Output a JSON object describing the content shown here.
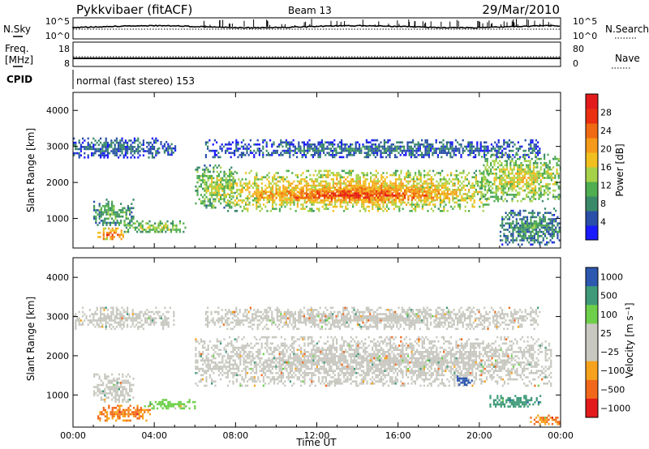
{
  "header": {
    "title": "Pykkvibaer (fitACF)",
    "beam": "Beam 13",
    "date": "29/Mar/2010"
  },
  "noise_panel": {
    "left_label": "N.Sky",
    "right_label": "N.Search",
    "left_ticks": [
      "10^5",
      "10^0"
    ],
    "right_ticks": [
      "10^5",
      "10^0"
    ]
  },
  "freq_panel": {
    "left_label_1": "Freq.",
    "left_label_2": "[MHz]",
    "right_label": "Nave",
    "left_ticks": [
      "18",
      "8"
    ],
    "right_ticks": [
      "80",
      "0"
    ]
  },
  "cpid_panel": {
    "label": "CPID",
    "text": "normal (fast stereo) 153"
  },
  "colors": {
    "power_scale": [
      "#1a1aff",
      "#2a4fa8",
      "#3a8a6a",
      "#4fae4f",
      "#a6d24a",
      "#f2c01e",
      "#f59a1a",
      "#ef6a12",
      "#ea3010",
      "#e31a1c"
    ],
    "velocity_scale": [
      "#e31a1c",
      "#f1681a",
      "#f7a21c",
      "#c8c8c0",
      "#c8c8c0",
      "#6ed04a",
      "#3e9a78",
      "#2c58b0"
    ]
  },
  "chart_data": [
    {
      "type": "heatmap",
      "name": "Power panel",
      "xlabel": "",
      "ylabel": "Slant Range [km]",
      "x_ticks": [
        "00:00",
        "04:00",
        "08:00",
        "12:00",
        "16:00",
        "20:00",
        "00:00"
      ],
      "xlim_hours": [
        0,
        24
      ],
      "ylim_km": [
        180,
        4500
      ],
      "y_ticks": [
        1000,
        2000,
        3000,
        4000
      ],
      "colorbar": {
        "label": "Power [dB]",
        "range": [
          0,
          32
        ],
        "ticks": [
          4,
          8,
          12,
          16,
          20,
          24,
          28
        ]
      },
      "echo_regions": [
        {
          "t_start": 0.0,
          "t_end": 4.2,
          "r_start": 2700,
          "r_end": 3250,
          "power_db": 7
        },
        {
          "t_start": 4.2,
          "t_end": 5.0,
          "r_start": 2750,
          "r_end": 3150,
          "power_db": 6
        },
        {
          "t_start": 1.0,
          "t_end": 3.0,
          "r_start": 800,
          "r_end": 1550,
          "power_db": 12
        },
        {
          "t_start": 1.2,
          "t_end": 2.5,
          "r_start": 400,
          "r_end": 750,
          "power_db": 28
        },
        {
          "t_start": 2.5,
          "t_end": 5.5,
          "r_start": 600,
          "r_end": 950,
          "power_db": 16
        },
        {
          "t_start": 6.0,
          "t_end": 8.0,
          "r_start": 1300,
          "r_end": 2500,
          "power_db": 16
        },
        {
          "t_start": 7.5,
          "t_end": 20.5,
          "r_start": 1200,
          "r_end": 2350,
          "power_db": 22
        },
        {
          "t_start": 9.0,
          "t_end": 18.5,
          "r_start": 1450,
          "r_end": 1900,
          "power_db": 29
        },
        {
          "t_start": 6.5,
          "t_end": 23.0,
          "r_start": 2700,
          "r_end": 3200,
          "power_db": 7
        },
        {
          "t_start": 20.0,
          "t_end": 24.0,
          "r_start": 1500,
          "r_end": 2800,
          "power_db": 18
        },
        {
          "t_start": 21.0,
          "t_end": 24.0,
          "r_start": 250,
          "r_end": 1300,
          "power_db": 10
        }
      ]
    },
    {
      "type": "heatmap",
      "name": "Velocity panel",
      "xlabel": "Time UT",
      "ylabel": "Slant Range [km]",
      "x_ticks": [
        "00:00",
        "04:00",
        "08:00",
        "12:00",
        "16:00",
        "20:00",
        "00:00"
      ],
      "xlim_hours": [
        0,
        24
      ],
      "ylim_km": [
        180,
        4500
      ],
      "y_ticks": [
        1000,
        2000,
        3000,
        4000
      ],
      "colorbar": {
        "label": "Velocity [m s⁻¹]",
        "ticks": [
          "1000",
          "500",
          "100",
          "25",
          "−25",
          "−100",
          "−500",
          "−1000"
        ]
      },
      "echo_regions": [
        {
          "t_start": 0.0,
          "t_end": 5.0,
          "r_start": 2700,
          "r_end": 3250,
          "velocity_ms": 0
        },
        {
          "t_start": 1.0,
          "t_end": 3.0,
          "r_start": 800,
          "r_end": 1550,
          "velocity_ms": 0
        },
        {
          "t_start": 1.2,
          "t_end": 3.8,
          "r_start": 350,
          "r_end": 750,
          "velocity_ms": -300
        },
        {
          "t_start": 3.5,
          "t_end": 6.0,
          "r_start": 650,
          "r_end": 900,
          "velocity_ms": 60
        },
        {
          "t_start": 6.0,
          "t_end": 23.5,
          "r_start": 1250,
          "r_end": 2500,
          "velocity_ms": 0
        },
        {
          "t_start": 6.5,
          "t_end": 23.0,
          "r_start": 2700,
          "r_end": 3250,
          "velocity_ms": 0
        },
        {
          "t_start": 18.8,
          "t_end": 19.6,
          "r_start": 1250,
          "r_end": 1500,
          "velocity_ms": 800
        },
        {
          "t_start": 20.5,
          "t_end": 23.0,
          "r_start": 700,
          "r_end": 1000,
          "velocity_ms": 500
        },
        {
          "t_start": 22.5,
          "t_end": 24.0,
          "r_start": 250,
          "r_end": 500,
          "velocity_ms": -300
        }
      ]
    }
  ]
}
